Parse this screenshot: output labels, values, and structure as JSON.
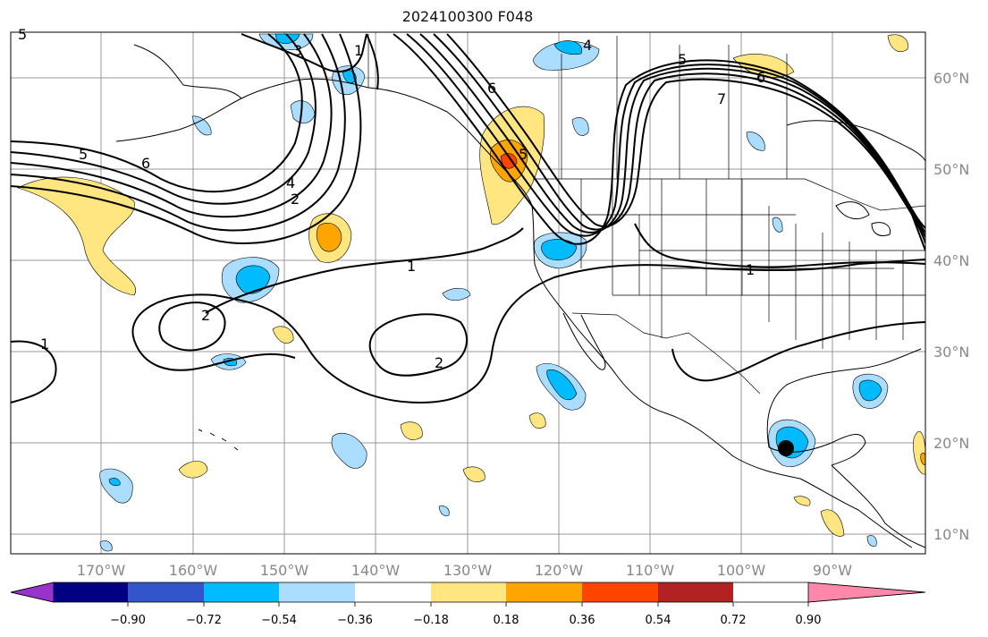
{
  "title": "2024100300 F048",
  "lat_labels": [
    "60°N",
    "50°N",
    "40°N",
    "30°N",
    "20°N",
    "10°N"
  ],
  "lon_labels": [
    "170°W",
    "160°W",
    "150°W",
    "140°W",
    "130°W",
    "120°W",
    "110°W",
    "100°W",
    "90°W"
  ],
  "colorbar": {
    "colors": [
      "#9933cc",
      "#000080",
      "#3355cc",
      "#00bbff",
      "#aaddff",
      "#ffffff",
      "#ffe680",
      "#ffa500",
      "#ff4400",
      "#b22222",
      "#ff88aa"
    ],
    "ticks": [
      "−0.90",
      "−0.72",
      "−0.54",
      "−0.36",
      "−0.18",
      "0.18",
      "0.36",
      "0.54",
      "0.72",
      "0.90"
    ]
  },
  "contour_labels": [
    "3",
    "1",
    "4",
    "5",
    "6",
    "7",
    "6",
    "5",
    "4",
    "2",
    "5",
    "6",
    "1",
    "2",
    "2",
    "1",
    "1",
    "5"
  ],
  "storm_marker": "tropical-cyclone-dot"
}
